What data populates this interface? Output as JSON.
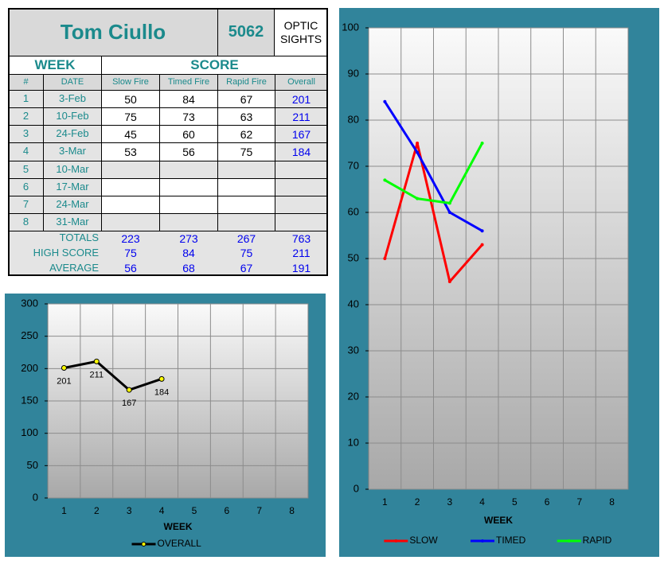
{
  "table": {
    "header": {
      "name": "Tom Ciullo",
      "number": "5062",
      "label": "OPTIC SIGHTS"
    },
    "groups": [
      "WEEK",
      "SCORE"
    ],
    "columns": [
      "#",
      "DATE",
      "Slow Fire",
      "Timed Fire",
      "Rapid Fire",
      "Overall"
    ],
    "rows": [
      [
        1,
        "3-Feb",
        50,
        84,
        67,
        201
      ],
      [
        2,
        "10-Feb",
        75,
        73,
        63,
        211
      ],
      [
        3,
        "24-Feb",
        45,
        60,
        62,
        167
      ],
      [
        4,
        "3-Mar",
        53,
        56,
        75,
        184
      ],
      [
        5,
        "10-Mar"
      ],
      [
        6,
        "17-Mar"
      ],
      [
        7,
        "24-Mar"
      ],
      [
        8,
        "31-Mar"
      ]
    ],
    "summary": [
      {
        "label": "TOTALS",
        "values": [
          223,
          273,
          267,
          763
        ]
      },
      {
        "label": "HIGH SCORE",
        "values": [
          75,
          84,
          75,
          211
        ]
      },
      {
        "label": "AVERAGE",
        "values": [
          56,
          68,
          67,
          191
        ]
      }
    ]
  },
  "chart_data": [
    {
      "type": "line",
      "xlabel": "WEEK",
      "categories": [
        "1",
        "2",
        "3",
        "4",
        "5",
        "6",
        "7",
        "8"
      ],
      "series": [
        {
          "name": "OVERALL",
          "color": "#000000",
          "marker_color": "#ffff00",
          "values": [
            201,
            211,
            167,
            184,
            null,
            null,
            null,
            null
          ]
        }
      ],
      "ylim": [
        0,
        300
      ],
      "yticks": [
        0,
        50,
        100,
        150,
        200,
        250,
        300
      ],
      "grid": true,
      "value_labels_shown": true,
      "legend": "bottom"
    },
    {
      "type": "line",
      "xlabel": "WEEK",
      "categories": [
        "1",
        "2",
        "3",
        "4",
        "5",
        "6",
        "7",
        "8"
      ],
      "series": [
        {
          "name": "SLOW",
          "color": "#ff0000",
          "values": [
            50,
            75,
            45,
            53,
            null,
            null,
            null,
            null
          ]
        },
        {
          "name": "TIMED",
          "color": "#0000ff",
          "values": [
            84,
            73,
            60,
            56,
            null,
            null,
            null,
            null
          ]
        },
        {
          "name": "RAPID",
          "color": "#00ff00",
          "values": [
            67,
            63,
            62,
            75,
            null,
            null,
            null,
            null
          ]
        }
      ],
      "ylim": [
        0,
        100
      ],
      "yticks": [
        0,
        10,
        20,
        30,
        40,
        50,
        60,
        70,
        80,
        90,
        100
      ],
      "grid": true,
      "legend": "bottom"
    }
  ]
}
